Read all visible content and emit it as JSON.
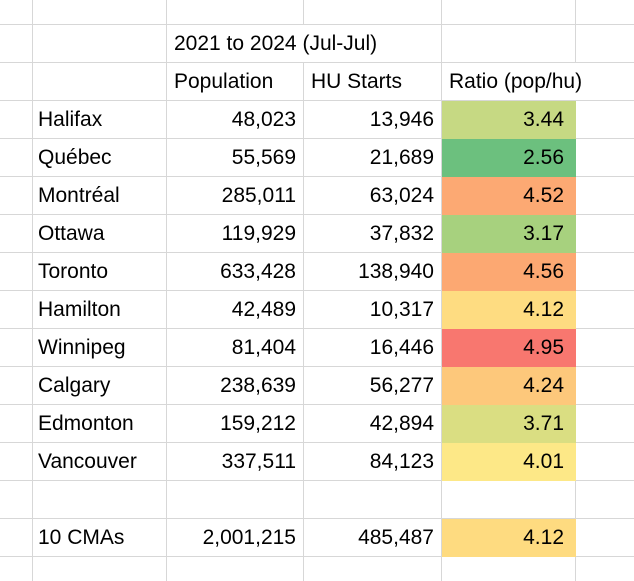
{
  "sheet": {
    "title": "2021 to 2024 (Jul-Jul)",
    "headers": {
      "population": "Population",
      "hu_starts": "HU Starts",
      "ratio": "Ratio (pop/hu)"
    },
    "rows": [
      {
        "city": "Halifax",
        "population": "48,023",
        "hu_starts": "13,946",
        "ratio": "3.44",
        "ratio_color": "#C6D983"
      },
      {
        "city": "Québec",
        "population": "55,569",
        "hu_starts": "21,689",
        "ratio": "2.56",
        "ratio_color": "#6CC07E"
      },
      {
        "city": "Montréal",
        "population": "285,011",
        "hu_starts": "63,024",
        "ratio": "4.52",
        "ratio_color": "#FCA973"
      },
      {
        "city": "Ottawa",
        "population": "119,929",
        "hu_starts": "37,832",
        "ratio": "3.17",
        "ratio_color": "#A7D17E"
      },
      {
        "city": "Toronto",
        "population": "633,428",
        "hu_starts": "138,940",
        "ratio": "4.56",
        "ratio_color": "#FCA872"
      },
      {
        "city": "Hamilton",
        "population": "42,489",
        "hu_starts": "10,317",
        "ratio": "4.12",
        "ratio_color": "#FEDC81"
      },
      {
        "city": "Winnipeg",
        "population": "81,404",
        "hu_starts": "16,446",
        "ratio": "4.95",
        "ratio_color": "#F8776F"
      },
      {
        "city": "Calgary",
        "population": "238,639",
        "hu_starts": "56,277",
        "ratio": "4.24",
        "ratio_color": "#FDC87B"
      },
      {
        "city": "Edmonton",
        "population": "159,212",
        "hu_starts": "42,894",
        "ratio": "3.71",
        "ratio_color": "#DADE82"
      },
      {
        "city": "Vancouver",
        "population": "337,511",
        "hu_starts": "84,123",
        "ratio": "4.01",
        "ratio_color": "#FDE887"
      }
    ],
    "total": {
      "label": "10 CMAs",
      "population": "2,001,215",
      "hu_starts": "485,487",
      "ratio": "4.12",
      "ratio_color": "#FEDB80"
    },
    "gridline_color": "#D7D7D7"
  }
}
